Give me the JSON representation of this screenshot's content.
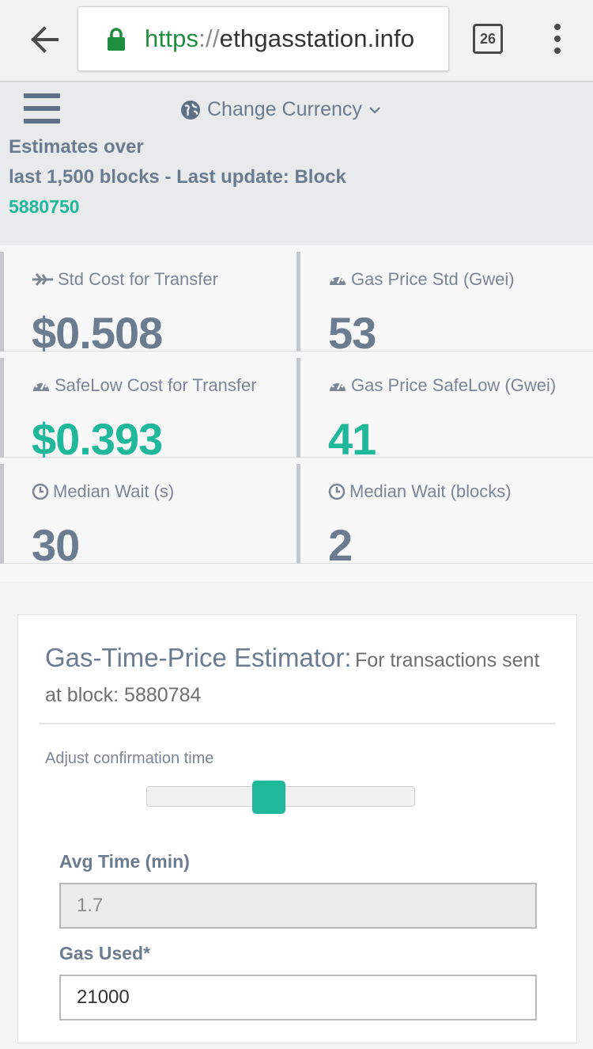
{
  "browser": {
    "url_scheme": "https",
    "url_separator": "://",
    "url_host": "ethgasstation.info",
    "tab_count": "26"
  },
  "header": {
    "currency_label": "Change Currency",
    "estimates_line1": "Estimates over",
    "estimates_line2": "last 1,500 blocks - Last update: Block",
    "last_block": "5880750"
  },
  "stats": [
    {
      "label": "Std Cost for Transfer",
      "value": "$0.508",
      "icon": "plane-icon",
      "highlight": false
    },
    {
      "label": "Gas Price Std (Gwei)",
      "value": "53",
      "icon": "gauge-icon",
      "highlight": false
    },
    {
      "label": "SafeLow Cost for Transfer",
      "value": "$0.393",
      "icon": "gauge-icon",
      "highlight": true
    },
    {
      "label": "Gas Price SafeLow (Gwei)",
      "value": "41",
      "icon": "gauge-icon",
      "highlight": true
    },
    {
      "label": "Median Wait (s)",
      "value": "30",
      "icon": "clock-icon",
      "highlight": false
    },
    {
      "label": "Median Wait (blocks)",
      "value": "2",
      "icon": "clock-icon",
      "highlight": false
    }
  ],
  "estimator": {
    "title": "Gas-Time-Price Estimator:",
    "subtitle": "For transactions sent at block: 5880784",
    "adjust_label": "Adjust confirmation time",
    "slider_position": 0.45,
    "avg_time_label": "Avg Time (min)",
    "avg_time_value": "1.7",
    "gas_used_label": "Gas Used*",
    "gas_used_value": "21000"
  },
  "colors": {
    "accent": "#1fb89a",
    "text_slate": "#6b7c91",
    "secure_green": "#1e8e3e"
  }
}
